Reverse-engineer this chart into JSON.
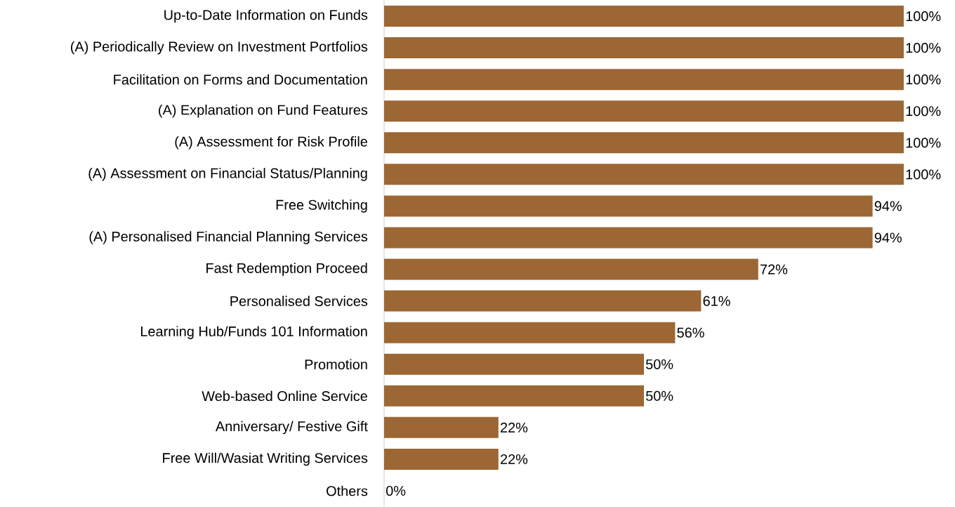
{
  "chart_data": {
    "type": "bar",
    "orientation": "horizontal",
    "categories": [
      "Up-to-Date Information on Funds",
      "(A) Periodically Review on Investment Portfolios",
      "Facilitation on Forms and Documentation",
      "(A) Explanation on Fund Features",
      "(A) Assessment for Risk Profile",
      "(A) Assessment on Financial Status/Planning",
      "Free Switching",
      "(A) Personalised Financial Planning Services",
      "Fast Redemption Proceed",
      "Personalised Services",
      "Learning Hub/Funds 101 Information",
      "Promotion",
      "Web-based Online Service",
      "Anniversary/ Festive Gift",
      "Free Will/Wasiat Writing Services",
      "Others"
    ],
    "values": [
      100,
      100,
      100,
      100,
      100,
      100,
      94,
      94,
      72,
      61,
      56,
      50,
      50,
      22,
      22,
      0
    ],
    "value_labels": [
      "100%",
      "100%",
      "100%",
      "100%",
      "100%",
      "100%",
      "94%",
      "94%",
      "72%",
      "61%",
      "56%",
      "50%",
      "50%",
      "22%",
      "22%",
      "0%"
    ],
    "color": "#9c6734",
    "xlim": [
      0,
      100
    ],
    "tick_labels": "y"
  }
}
